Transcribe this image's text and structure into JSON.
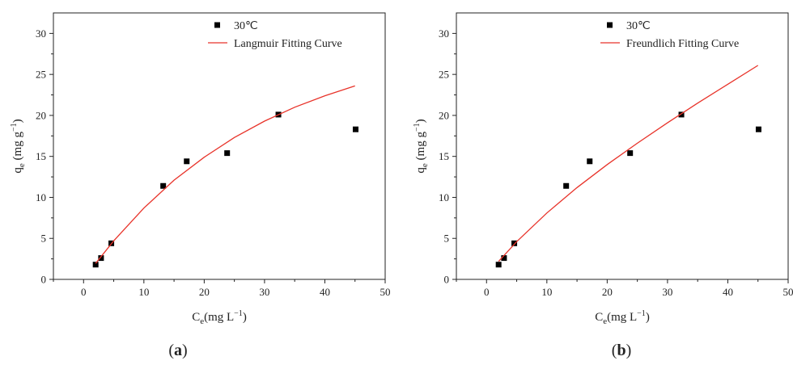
{
  "chart_data": [
    {
      "type": "scatter",
      "caption_open": "(",
      "caption_letter": "a",
      "caption_close": ")",
      "xlabel": {
        "main": "C",
        "sub": "e",
        "units": "(mg L",
        "sup": "−1",
        "close": ")"
      },
      "ylabel": {
        "main": "q",
        "sub": "e",
        "units": " (mg g",
        "sup": "−1",
        "close": ")"
      },
      "xlim": [
        -5,
        50
      ],
      "ylim": [
        0,
        32.5
      ],
      "x_ticks": [
        0,
        10,
        20,
        30,
        40,
        50
      ],
      "y_ticks": [
        0,
        5,
        10,
        15,
        20,
        25,
        30
      ],
      "grid": false,
      "legend_position": "top-right",
      "series": [
        {
          "name": "30℃",
          "kind": "scatter",
          "color": "#000000",
          "x": [
            2.0,
            2.9,
            4.6,
            13.2,
            17.1,
            23.8,
            32.3,
            45.1
          ],
          "y": [
            1.8,
            2.6,
            4.4,
            11.4,
            14.4,
            15.4,
            20.1,
            18.3
          ]
        },
        {
          "name": "Langmuir Fitting Curve",
          "kind": "line",
          "color": "#e8332a",
          "x": [
            2.0,
            5.0,
            10.0,
            15.0,
            20.0,
            25.0,
            30.0,
            35.0,
            40.0,
            45.0
          ],
          "y": [
            1.95,
            4.7,
            8.7,
            12.1,
            14.9,
            17.3,
            19.3,
            21.0,
            22.4,
            23.6
          ]
        }
      ]
    },
    {
      "type": "scatter",
      "caption_open": "(",
      "caption_letter": "b",
      "caption_close": ")",
      "xlabel": {
        "main": "C",
        "sub": "e",
        "units": "(mg L",
        "sup": "−1",
        "close": ")"
      },
      "ylabel": {
        "main": "q",
        "sub": "e",
        "units": " (mg g",
        "sup": "−1",
        "close": ")"
      },
      "xlim": [
        -5,
        50
      ],
      "ylim": [
        0,
        32.5
      ],
      "x_ticks": [
        0,
        10,
        20,
        30,
        40,
        50
      ],
      "y_ticks": [
        0,
        5,
        10,
        15,
        20,
        25,
        30
      ],
      "grid": false,
      "legend_position": "top-right",
      "series": [
        {
          "name": "30℃",
          "kind": "scatter",
          "color": "#000000",
          "x": [
            2.0,
            2.9,
            4.6,
            13.2,
            17.1,
            23.8,
            32.3,
            45.1
          ],
          "y": [
            1.8,
            2.6,
            4.4,
            11.4,
            14.4,
            15.4,
            20.1,
            18.3
          ]
        },
        {
          "name": "Freundlich Fitting Curve",
          "kind": "line",
          "color": "#e8332a",
          "x": [
            2.0,
            5.0,
            10.0,
            15.0,
            20.0,
            25.0,
            30.0,
            35.0,
            40.0,
            45.0
          ],
          "y": [
            2.2,
            4.6,
            8.1,
            11.2,
            14.0,
            16.6,
            19.1,
            21.5,
            23.8,
            26.1
          ]
        }
      ]
    }
  ]
}
